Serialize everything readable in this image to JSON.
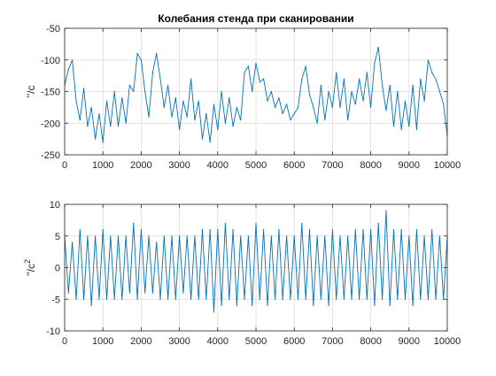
{
  "chart_data": [
    {
      "type": "line",
      "title": "Колебания стенда при сканировании",
      "ylabel": "''/c",
      "xlabel": "",
      "xlim": [
        0,
        10000
      ],
      "ylim": [
        -250,
        -50
      ],
      "xticks": [
        0,
        1000,
        2000,
        3000,
        4000,
        5000,
        6000,
        7000,
        8000,
        9000,
        10000
      ],
      "xtick_labels": [
        "0",
        "1000",
        "2000",
        "3000",
        "4000",
        "5000",
        "6000",
        "7000",
        "8000",
        "9000",
        "10000"
      ],
      "yticks": [
        -250,
        -200,
        -150,
        -100,
        -50
      ],
      "ytick_labels": [
        "-250",
        "-200",
        "-150",
        "-100",
        "-50"
      ],
      "grid": true,
      "color": "#0072BD",
      "series": [
        {
          "x": [
            0,
            100,
            200,
            300,
            400,
            500,
            600,
            700,
            800,
            900,
            1000,
            1100,
            1200,
            1300,
            1400,
            1500,
            1600,
            1700,
            1800,
            1900,
            2000,
            2100,
            2200,
            2300,
            2400,
            2500,
            2600,
            2700,
            2800,
            2900,
            3000,
            3100,
            3200,
            3300,
            3400,
            3500,
            3600,
            3700,
            3800,
            3900,
            4000,
            4100,
            4200,
            4300,
            4400,
            4500,
            4600,
            4700,
            4800,
            4900,
            5000,
            5100,
            5200,
            5300,
            5400,
            5500,
            5600,
            5700,
            5800,
            5900,
            6000,
            6100,
            6200,
            6300,
            6400,
            6500,
            6600,
            6700,
            6800,
            6900,
            7000,
            7100,
            7200,
            7300,
            7400,
            7500,
            7600,
            7700,
            7800,
            7900,
            8000,
            8100,
            8200,
            8300,
            8400,
            8500,
            8600,
            8700,
            8800,
            8900,
            9000,
            9100,
            9200,
            9300,
            9400,
            9500,
            9600,
            9700,
            9800,
            9900,
            10000
          ],
          "values": [
            -140,
            -115,
            -100,
            -165,
            -195,
            -145,
            -205,
            -175,
            -225,
            -185,
            -230,
            -165,
            -205,
            -150,
            -205,
            -160,
            -200,
            -140,
            -150,
            -90,
            -100,
            -150,
            -190,
            -120,
            -90,
            -130,
            -175,
            -140,
            -190,
            -160,
            -210,
            -165,
            -190,
            -130,
            -195,
            -165,
            -225,
            -185,
            -230,
            -170,
            -210,
            -150,
            -200,
            -160,
            -205,
            -175,
            -195,
            -120,
            -110,
            -150,
            -105,
            -135,
            -130,
            -165,
            -150,
            -175,
            -160,
            -185,
            -170,
            -195,
            -185,
            -175,
            -130,
            -110,
            -155,
            -175,
            -200,
            -140,
            -195,
            -150,
            -175,
            -120,
            -175,
            -130,
            -195,
            -150,
            -170,
            -130,
            -165,
            -120,
            -175,
            -105,
            -80,
            -140,
            -180,
            -140,
            -205,
            -150,
            -210,
            -165,
            -205,
            -140,
            -210,
            -130,
            -165,
            -100,
            -120,
            -130,
            -150,
            -170,
            -220
          ]
        }
      ]
    },
    {
      "type": "line",
      "title": "",
      "ylabel": "''/c2",
      "xlabel": "",
      "xlim": [
        0,
        10000
      ],
      "ylim": [
        -10,
        10
      ],
      "xticks": [
        0,
        1000,
        2000,
        3000,
        4000,
        5000,
        6000,
        7000,
        8000,
        9000,
        10000
      ],
      "xtick_labels": [
        "0",
        "1000",
        "2000",
        "3000",
        "4000",
        "5000",
        "6000",
        "7000",
        "8000",
        "9000",
        "10000"
      ],
      "yticks": [
        -10,
        -5,
        0,
        5,
        10
      ],
      "ytick_labels": [
        "-10",
        "-5",
        "0",
        "5",
        "10"
      ],
      "grid": true,
      "color": "#0072BD",
      "series": [
        {
          "x": [
            0,
            100,
            200,
            300,
            400,
            500,
            600,
            700,
            800,
            900,
            1000,
            1100,
            1200,
            1300,
            1400,
            1500,
            1600,
            1700,
            1800,
            1900,
            2000,
            2100,
            2200,
            2300,
            2400,
            2500,
            2600,
            2700,
            2800,
            2900,
            3000,
            3100,
            3200,
            3300,
            3400,
            3500,
            3600,
            3700,
            3800,
            3900,
            4000,
            4100,
            4200,
            4300,
            4400,
            4500,
            4600,
            4700,
            4800,
            4900,
            5000,
            5100,
            5200,
            5300,
            5400,
            5500,
            5600,
            5700,
            5800,
            5900,
            6000,
            6100,
            6200,
            6300,
            6400,
            6500,
            6600,
            6700,
            6800,
            6900,
            7000,
            7100,
            7200,
            7300,
            7400,
            7500,
            7600,
            7700,
            7800,
            7900,
            8000,
            8100,
            8200,
            8300,
            8400,
            8500,
            8600,
            8700,
            8800,
            8900,
            9000,
            9100,
            9200,
            9300,
            9400,
            9500,
            9600,
            9700,
            9800,
            9900,
            10000
          ],
          "values": [
            5,
            -4,
            4,
            -5,
            6,
            -5,
            5,
            -6,
            5,
            -5,
            6,
            -5,
            5,
            -5,
            5,
            -5,
            5,
            -4,
            7,
            -5,
            6,
            -4,
            5,
            -4,
            4,
            -5,
            5,
            -5,
            5,
            -5,
            5,
            -4,
            5,
            -5,
            5,
            -5,
            6,
            -5,
            6,
            -7,
            6,
            -6,
            7,
            -5,
            6,
            -6,
            5,
            -5,
            5,
            -6,
            7,
            -5,
            6,
            -6,
            5,
            -5,
            6,
            -5,
            5,
            -5,
            5,
            -5,
            7,
            -5,
            6,
            -6,
            5,
            -5,
            5,
            -6,
            6,
            -5,
            5,
            -5,
            5,
            -5,
            6,
            -5,
            6,
            -5,
            6,
            -6,
            7,
            -5,
            9,
            -6,
            6,
            -5,
            6,
            -5,
            5,
            -6,
            6,
            -5,
            5,
            -5,
            6,
            -5,
            5,
            -5,
            5
          ]
        }
      ]
    }
  ]
}
